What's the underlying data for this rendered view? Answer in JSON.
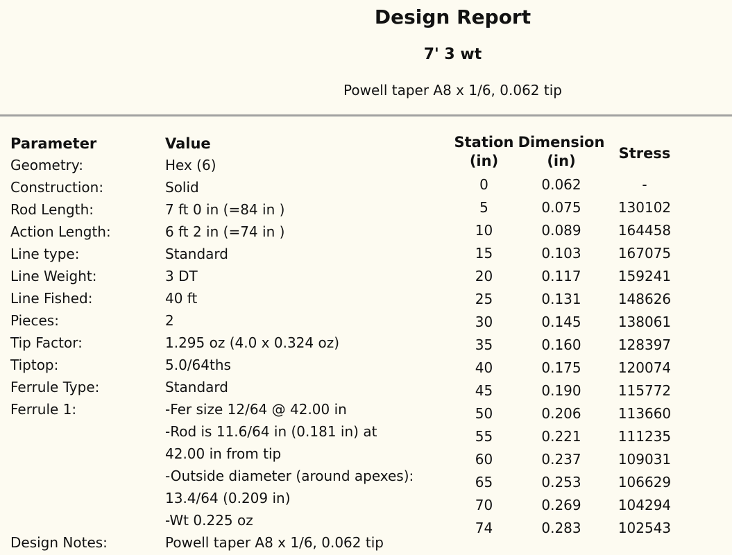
{
  "header": {
    "title": "Design Report",
    "subtitle": "7' 3 wt",
    "taper": "Powell taper A8 x 1/6, 0.062 tip"
  },
  "parameters": {
    "col_param": "Parameter",
    "col_value": "Value",
    "rows": [
      {
        "param": "Geometry:",
        "value": "Hex (6)"
      },
      {
        "param": "Construction:",
        "value": "Solid"
      },
      {
        "param": "Rod Length:",
        "value": "7 ft 0 in (=84 in )"
      },
      {
        "param": "Action Length:",
        "value": "6 ft 2 in (=74 in )"
      },
      {
        "param": "Line type:",
        "value": "Standard"
      },
      {
        "param": "Line Weight:",
        "value": "3 DT"
      },
      {
        "param": "Line Fished:",
        "value": "40 ft"
      },
      {
        "param": "Pieces:",
        "value": "2"
      },
      {
        "param": "Tip Factor:",
        "value": "1.295 oz (4.0 x 0.324 oz)"
      },
      {
        "param": "Tiptop:",
        "value": "5.0/64ths"
      },
      {
        "param": "Ferrule Type:",
        "value": "Standard"
      },
      {
        "param": "Ferrule 1:",
        "value": "-Fer size 12/64 @ 42.00 in\n-Rod is 11.6/64 in (0.181 in) at\n42.00 in from tip\n-Outside diameter (around apexes):\n13.4/64 (0.209 in)\n-Wt 0.225 oz"
      },
      {
        "param": "Design Notes:",
        "value": "Powell taper A8 x 1/6, 0.062 tip"
      }
    ]
  },
  "stations": {
    "columns": [
      {
        "label": "Station",
        "unit": "(in)"
      },
      {
        "label": "Dimension",
        "unit": "(in)"
      },
      {
        "label": "Stress",
        "unit": ""
      }
    ],
    "rows": [
      {
        "station": "0",
        "dimension": "0.062",
        "stress": "-"
      },
      {
        "station": "5",
        "dimension": "0.075",
        "stress": "130102"
      },
      {
        "station": "10",
        "dimension": "0.089",
        "stress": "164458"
      },
      {
        "station": "15",
        "dimension": "0.103",
        "stress": "167075"
      },
      {
        "station": "20",
        "dimension": "0.117",
        "stress": "159241"
      },
      {
        "station": "25",
        "dimension": "0.131",
        "stress": "148626"
      },
      {
        "station": "30",
        "dimension": "0.145",
        "stress": "138061"
      },
      {
        "station": "35",
        "dimension": "0.160",
        "stress": "128397"
      },
      {
        "station": "40",
        "dimension": "0.175",
        "stress": "120074"
      },
      {
        "station": "45",
        "dimension": "0.190",
        "stress": "115772"
      },
      {
        "station": "50",
        "dimension": "0.206",
        "stress": "113660"
      },
      {
        "station": "55",
        "dimension": "0.221",
        "stress": "111235"
      },
      {
        "station": "60",
        "dimension": "0.237",
        "stress": "109031"
      },
      {
        "station": "65",
        "dimension": "0.253",
        "stress": "106629"
      },
      {
        "station": "70",
        "dimension": "0.269",
        "stress": "104294"
      },
      {
        "station": "74",
        "dimension": "0.283",
        "stress": "102543"
      }
    ]
  },
  "colors": {
    "background": "#fdfbf1",
    "rule": "#9a9a9a",
    "text": "#121212"
  }
}
